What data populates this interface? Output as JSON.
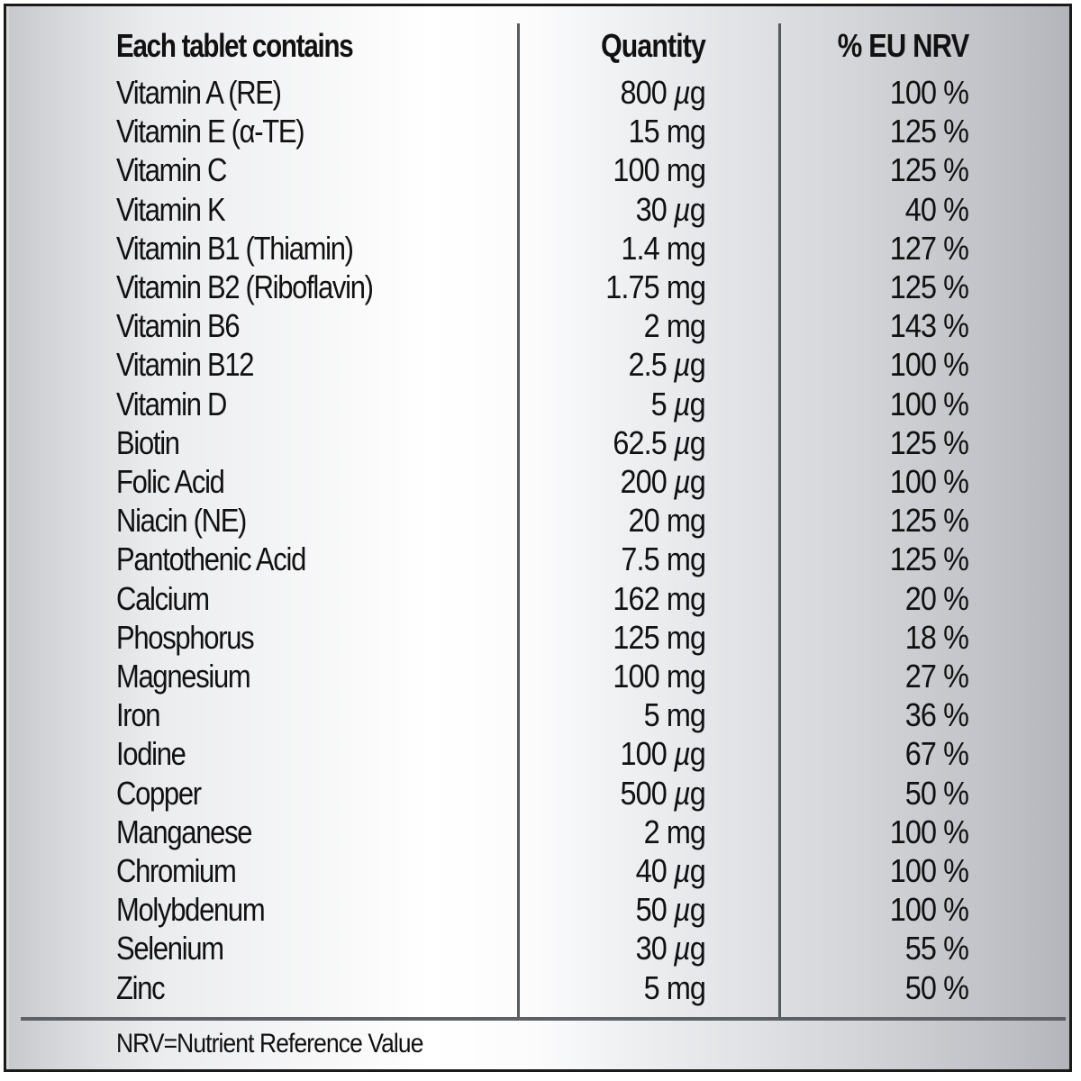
{
  "table": {
    "headers": {
      "name": "Each tablet contains",
      "quantity": "Quantity",
      "nrv": "% EU NRV"
    },
    "rows": [
      {
        "name": "Vitamin A (RE)",
        "quantity": "800 µg",
        "nrv": "100 %"
      },
      {
        "name": "Vitamin E (α-TE)",
        "quantity": "15 mg",
        "nrv": "125 %"
      },
      {
        "name": "Vitamin C",
        "quantity": "100 mg",
        "nrv": "125 %"
      },
      {
        "name": "Vitamin K",
        "quantity": "30 µg",
        "nrv": "40 %"
      },
      {
        "name": "Vitamin B1 (Thiamin)",
        "quantity": "1.4 mg",
        "nrv": "127 %"
      },
      {
        "name": "Vitamin B2 (Riboflavin)",
        "quantity": "1.75 mg",
        "nrv": "125 %"
      },
      {
        "name": "Vitamin B6",
        "quantity": "2 mg",
        "nrv": "143 %"
      },
      {
        "name": "Vitamin B12",
        "quantity": "2.5 µg",
        "nrv": "100 %"
      },
      {
        "name": "Vitamin D",
        "quantity": "5 µg",
        "nrv": "100 %"
      },
      {
        "name": "Biotin",
        "quantity": "62.5 µg",
        "nrv": "125 %"
      },
      {
        "name": "Folic Acid",
        "quantity": "200 µg",
        "nrv": "100 %"
      },
      {
        "name": "Niacin (NE)",
        "quantity": "20 mg",
        "nrv": "125 %"
      },
      {
        "name": "Pantothenic Acid",
        "quantity": "7.5 mg",
        "nrv": "125 %"
      },
      {
        "name": "Calcium",
        "quantity": "162 mg",
        "nrv": "20 %"
      },
      {
        "name": "Phosphorus",
        "quantity": "125 mg",
        "nrv": "18 %"
      },
      {
        "name": "Magnesium",
        "quantity": "100 mg",
        "nrv": "27 %"
      },
      {
        "name": "Iron",
        "quantity": "5 mg",
        "nrv": "36 %"
      },
      {
        "name": "Iodine",
        "quantity": "100 µg",
        "nrv": "67 %"
      },
      {
        "name": "Copper",
        "quantity": "500 µg",
        "nrv": "50 %"
      },
      {
        "name": "Manganese",
        "quantity": "2 mg",
        "nrv": "100 %"
      },
      {
        "name": "Chromium",
        "quantity": "40 µg",
        "nrv": "100 %"
      },
      {
        "name": "Molybdenum",
        "quantity": "50 µg",
        "nrv": "100 %"
      },
      {
        "name": "Selenium",
        "quantity": "30 µg",
        "nrv": "55 %"
      },
      {
        "name": "Zinc",
        "quantity": "5 mg",
        "nrv": "50 %"
      }
    ]
  },
  "footnote": "NRV=Nutrient Reference Value",
  "colors": {
    "border": "#1a1a1a",
    "rule": "#555a5f",
    "text": "#111111",
    "gradient_edge": "#b4b5ba",
    "gradient_center": "#ffffff"
  }
}
